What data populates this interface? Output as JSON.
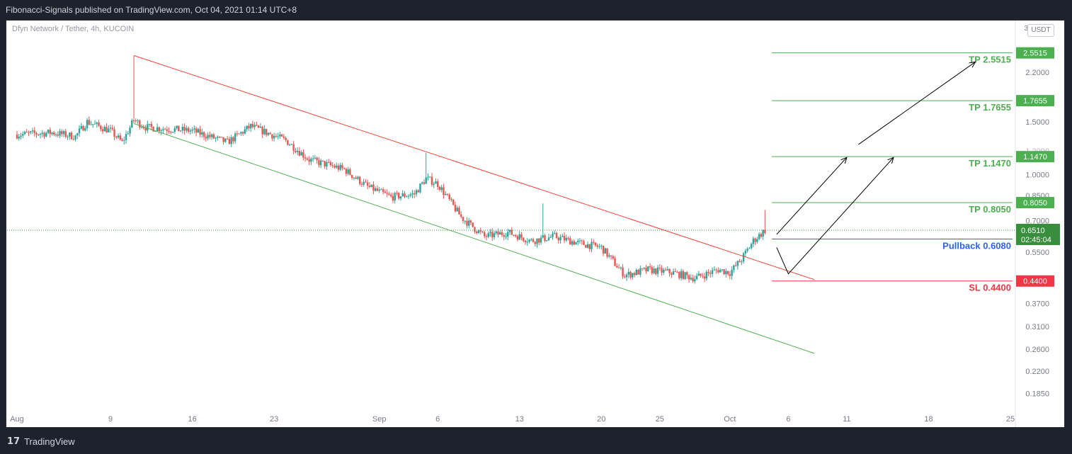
{
  "header": {
    "publish_line": "Fibonacci-Signals published on TradingView.com, Oct 04, 2021 01:14 UTC+8"
  },
  "footer": {
    "logo_glyph": "17",
    "brand": "TradingView"
  },
  "colors": {
    "up": "#26a69a",
    "down": "#ef5350",
    "tp": "#4caf50",
    "sl": "#f23645",
    "pullback": "#2962ff",
    "price": "#388e3c",
    "channel_top": "#f44336",
    "channel_bottom": "#4caf50",
    "arrow": "#000000"
  },
  "chart_data": {
    "type": "candlestick",
    "symbol_line": "Dfyn Network / Tether, 4h, KUCOIN",
    "currency": "USDT",
    "scale": "log",
    "x_range": [
      "2021-08-01",
      "2021-10-25"
    ],
    "y_range": [
      0.17,
      3.0
    ],
    "x_ticks": [
      {
        "date": "2021-08-01",
        "label": "Aug"
      },
      {
        "date": "2021-08-09",
        "label": "9"
      },
      {
        "date": "2021-08-16",
        "label": "16"
      },
      {
        "date": "2021-08-23",
        "label": "23"
      },
      {
        "date": "2021-09-01",
        "label": "Sep"
      },
      {
        "date": "2021-09-06",
        "label": "6"
      },
      {
        "date": "2021-09-13",
        "label": "13"
      },
      {
        "date": "2021-09-20",
        "label": "20"
      },
      {
        "date": "2021-09-25",
        "label": "25"
      },
      {
        "date": "2021-10-01",
        "label": "Oct"
      },
      {
        "date": "2021-10-06",
        "label": "6"
      },
      {
        "date": "2021-10-11",
        "label": "11"
      },
      {
        "date": "2021-10-18",
        "label": "18"
      },
      {
        "date": "2021-10-25",
        "label": "25"
      }
    ],
    "y_ticks": [
      "2.2000",
      "1.5000",
      "1.2000",
      "1.0000",
      "0.8500",
      "0.7000",
      "0.5500",
      "0.4500",
      "0.3700",
      "0.3100",
      "0.2600",
      "0.2200",
      "0.1850"
    ],
    "y_tick_partial_top": "3",
    "price_path": [
      [
        "2021-08-01",
        1.36
      ],
      [
        "2021-08-04",
        1.38
      ],
      [
        "2021-08-06",
        1.34
      ],
      [
        "2021-08-07",
        1.5
      ],
      [
        "2021-08-09",
        1.4
      ],
      [
        "2021-08-10",
        1.28
      ],
      [
        "2021-08-11",
        1.52
      ],
      [
        "2021-08-12",
        1.44
      ],
      [
        "2021-08-16",
        1.4
      ],
      [
        "2021-08-19",
        1.28
      ],
      [
        "2021-08-21",
        1.45
      ],
      [
        "2021-08-24",
        1.3
      ],
      [
        "2021-08-26",
        1.12
      ],
      [
        "2021-08-29",
        1.04
      ],
      [
        "2021-08-31",
        0.91
      ],
      [
        "2021-09-02",
        0.84
      ],
      [
        "2021-09-04",
        0.86
      ],
      [
        "2021-09-05",
        0.97
      ],
      [
        "2021-09-06",
        0.93
      ],
      [
        "2021-09-08",
        0.72
      ],
      [
        "2021-09-10",
        0.62
      ],
      [
        "2021-09-12",
        0.64
      ],
      [
        "2021-09-14",
        0.6
      ],
      [
        "2021-09-16",
        0.62
      ],
      [
        "2021-09-18",
        0.59
      ],
      [
        "2021-09-20",
        0.57
      ],
      [
        "2021-09-22",
        0.46
      ],
      [
        "2021-09-24",
        0.48
      ],
      [
        "2021-09-26",
        0.47
      ],
      [
        "2021-09-28",
        0.45
      ],
      [
        "2021-09-30",
        0.48
      ],
      [
        "2021-10-01",
        0.47
      ],
      [
        "2021-10-02",
        0.52
      ],
      [
        "2021-10-03",
        0.6
      ],
      [
        "2021-10-04",
        0.651
      ]
    ],
    "highs": [
      {
        "date": "2021-08-11",
        "value": 2.5
      },
      {
        "date": "2021-09-05",
        "value": 1.18
      },
      {
        "date": "2021-09-15",
        "value": 0.8
      },
      {
        "date": "2021-10-04",
        "value": 0.76
      }
    ],
    "channel": {
      "upper": [
        [
          "2021-08-11",
          2.5
        ],
        [
          "2021-10-07",
          0.445
        ]
      ],
      "lower": [
        [
          "2021-08-11",
          1.48
        ],
        [
          "2021-10-07",
          0.252
        ]
      ]
    },
    "levels": [
      {
        "name": "TP 2.5515",
        "value": 2.5515,
        "badge": "2.5515",
        "kind": "tp"
      },
      {
        "name": "TP 1.7655",
        "value": 1.7655,
        "badge": "1.7655",
        "kind": "tp"
      },
      {
        "name": "TP 1.1470",
        "value": 1.147,
        "badge": "1.1470",
        "kind": "tp"
      },
      {
        "name": "TP 0.8050",
        "value": 0.805,
        "badge": "0.8050",
        "kind": "tp"
      },
      {
        "name": "Pullback 0.6080",
        "value": 0.608,
        "badge": "0.6080",
        "kind": "pullback"
      },
      {
        "name": "SL 0.4400",
        "value": 0.44,
        "badge": "0.4400",
        "kind": "sl"
      }
    ],
    "last_price": {
      "value": 0.651,
      "badge": "0.6510",
      "countdown": "02:45:04"
    },
    "arrows": [
      [
        [
          "2021-10-05",
          0.63
        ],
        [
          "2021-10-11",
          1.14
        ]
      ],
      [
        [
          "2021-10-05",
          0.57
        ],
        [
          "2021-10-06",
          0.465
        ],
        [
          "2021-10-15",
          1.14
        ]
      ],
      [
        [
          "2021-10-12",
          1.26
        ],
        [
          "2021-10-22",
          2.38
        ]
      ]
    ]
  }
}
